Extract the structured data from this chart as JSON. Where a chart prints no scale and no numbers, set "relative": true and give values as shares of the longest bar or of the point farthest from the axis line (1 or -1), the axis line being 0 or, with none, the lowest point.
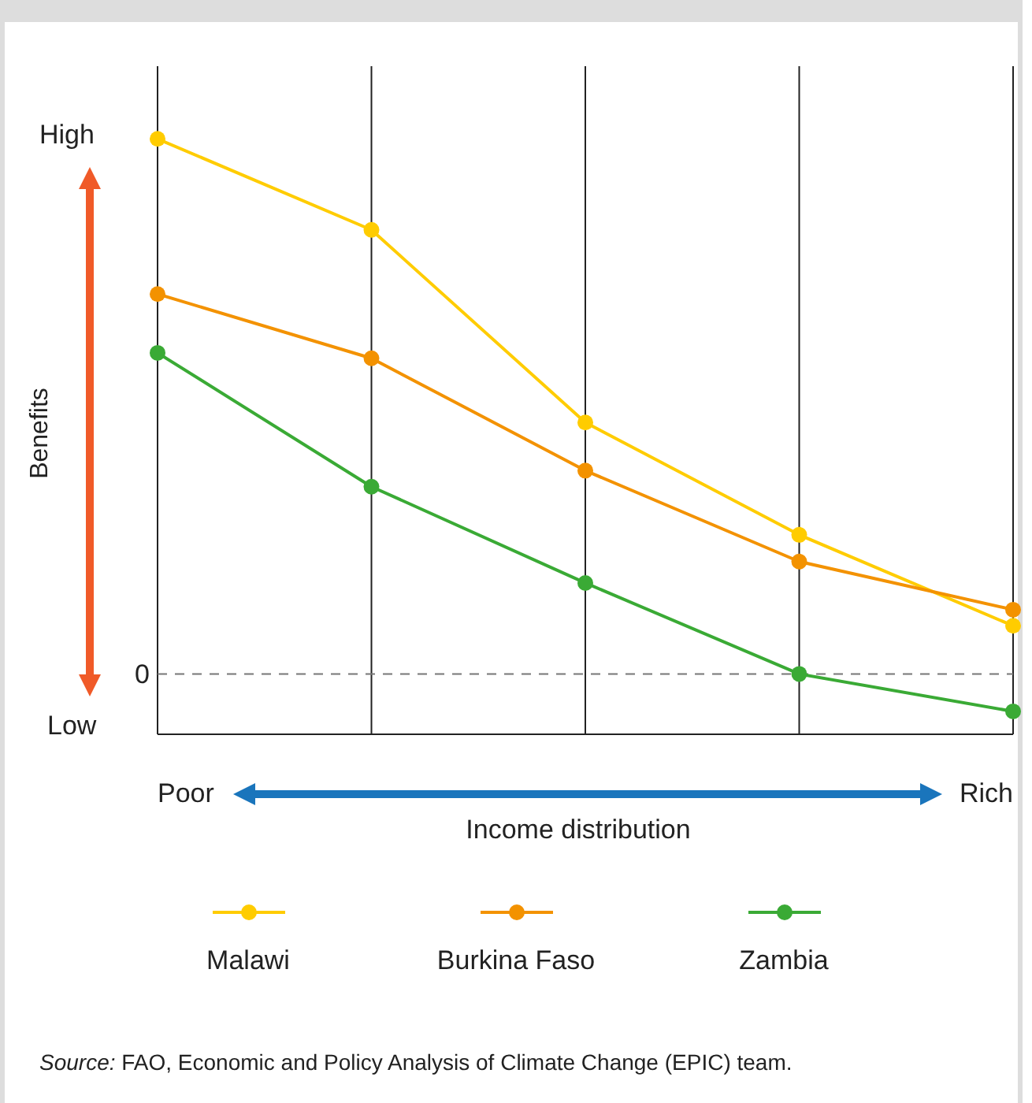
{
  "chart_data": {
    "type": "line",
    "relative": true,
    "ylabel": "Benefits",
    "xlabel": "Income distribution",
    "categories": [
      null,
      null,
      null,
      null,
      null
    ],
    "series": [
      {
        "name": "Malawi",
        "color": "#ffcc00",
        "values": [
          1,
          0.83,
          0.47,
          0.26,
          0.09
        ]
      },
      {
        "name": "Burkina Faso",
        "color": "#f39200",
        "values": [
          0.71,
          0.59,
          0.38,
          0.21,
          0.12
        ]
      },
      {
        "name": "Zambia",
        "color": "#3aaa35",
        "values": [
          0.6,
          0.35,
          0.17,
          0,
          -0.07
        ]
      }
    ],
    "ref_lines": [
      {
        "axis": "y",
        "value": 0,
        "label": "0",
        "line_style": "dashed",
        "color": "#777777"
      }
    ],
    "grid": "x",
    "marker": "circle",
    "line_style": "solid",
    "legend": "bottom",
    "annotations": [
      "High",
      "Low",
      "Poor",
      "Rich",
      "Source: FAO, Economic and Policy Analysis of Climate Change (EPIC) team."
    ]
  }
}
